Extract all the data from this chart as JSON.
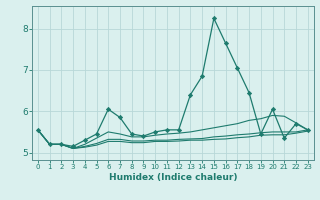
{
  "xlabel": "Humidex (Indice chaleur)",
  "background_color": "#daf0ee",
  "grid_color": "#b8d8d8",
  "line_color": "#1e7b6e",
  "spine_color": "#5a9090",
  "tick_color": "#1e7b6e",
  "xlim": [
    -0.5,
    23.5
  ],
  "ylim": [
    4.82,
    8.55
  ],
  "yticks": [
    5,
    6,
    7,
    8
  ],
  "xticks": [
    0,
    1,
    2,
    3,
    4,
    5,
    6,
    7,
    8,
    9,
    10,
    11,
    12,
    13,
    14,
    15,
    16,
    17,
    18,
    19,
    20,
    21,
    22,
    23
  ],
  "series": [
    [
      5.55,
      5.2,
      5.2,
      5.15,
      5.3,
      5.45,
      6.05,
      5.85,
      5.45,
      5.4,
      5.5,
      5.55,
      5.55,
      6.4,
      6.85,
      8.25,
      7.65,
      7.05,
      6.45,
      5.45,
      6.05,
      5.35,
      5.7,
      5.55
    ],
    [
      5.55,
      5.2,
      5.2,
      5.1,
      5.2,
      5.35,
      5.5,
      5.45,
      5.38,
      5.38,
      5.42,
      5.45,
      5.47,
      5.5,
      5.55,
      5.6,
      5.65,
      5.7,
      5.78,
      5.82,
      5.9,
      5.88,
      5.72,
      5.55
    ],
    [
      5.55,
      5.2,
      5.2,
      5.1,
      5.15,
      5.22,
      5.32,
      5.32,
      5.28,
      5.28,
      5.3,
      5.3,
      5.32,
      5.33,
      5.34,
      5.38,
      5.4,
      5.43,
      5.45,
      5.48,
      5.5,
      5.5,
      5.5,
      5.55
    ],
    [
      5.55,
      5.2,
      5.2,
      5.1,
      5.13,
      5.18,
      5.27,
      5.27,
      5.24,
      5.24,
      5.27,
      5.27,
      5.28,
      5.3,
      5.3,
      5.32,
      5.33,
      5.36,
      5.38,
      5.42,
      5.43,
      5.43,
      5.47,
      5.52
    ]
  ]
}
